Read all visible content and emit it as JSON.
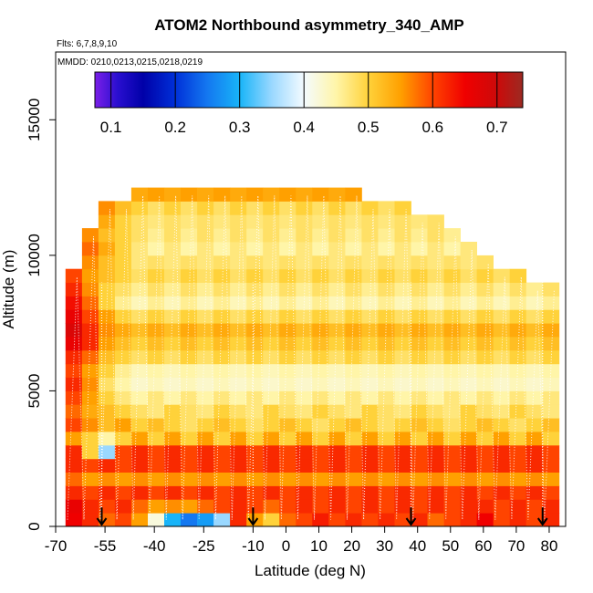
{
  "chart_data": {
    "type": "heatmap",
    "title": "ATOM2 Northbound asymmetry_340_AMP",
    "flights_label": "Flts: 6,7,8,9,10",
    "dates_label": "MMDD: 0210,0213,0215,0218,0219",
    "xlabel": "Latitude (deg N)",
    "ylabel": "Altitude (m)",
    "xlim": [
      -70,
      85
    ],
    "ylim": [
      0,
      17500
    ],
    "x_ticks": [
      -70,
      -55,
      -40,
      -25,
      -10,
      0,
      10,
      20,
      30,
      40,
      50,
      60,
      70,
      80
    ],
    "y_ticks": [
      0,
      5000,
      10000,
      15000
    ],
    "colorbar": {
      "range": [
        0.075,
        0.74
      ],
      "ticks": [
        0.1,
        0.2,
        0.3,
        0.4,
        0.5,
        0.6,
        0.7
      ],
      "stops": [
        {
          "v": 0.075,
          "c": "#7b1fe8"
        },
        {
          "v": 0.11,
          "c": "#2a0fd0"
        },
        {
          "v": 0.15,
          "c": "#0000a8"
        },
        {
          "v": 0.2,
          "c": "#0030d8"
        },
        {
          "v": 0.25,
          "c": "#1478f0"
        },
        {
          "v": 0.3,
          "c": "#18b4f8"
        },
        {
          "v": 0.35,
          "c": "#9ad8ff"
        },
        {
          "v": 0.4,
          "c": "#f4fbff"
        },
        {
          "v": 0.45,
          "c": "#fff5a8"
        },
        {
          "v": 0.5,
          "c": "#ffd23a"
        },
        {
          "v": 0.55,
          "c": "#ffa000"
        },
        {
          "v": 0.6,
          "c": "#ff4400"
        },
        {
          "v": 0.65,
          "c": "#f00000"
        },
        {
          "v": 0.7,
          "c": "#cc0a0a"
        },
        {
          "v": 0.74,
          "c": "#9c2a22"
        }
      ]
    },
    "profile_latitudes": [
      -56,
      -10,
      38,
      78
    ],
    "altitude_bins_m": [
      0,
      500,
      1000,
      1500,
      2000,
      2500,
      3000,
      3500,
      4000,
      4500,
      5000,
      5500,
      6000,
      6500,
      7000,
      7500,
      8000,
      8500,
      9000,
      9500,
      10000,
      10500,
      11000,
      11500,
      12000,
      12500
    ],
    "latitude_bins_deg": [
      -67,
      -62,
      -57,
      -52,
      -47,
      -42,
      -37,
      -32,
      -27,
      -22,
      -17,
      -12,
      -7,
      -2,
      3,
      8,
      13,
      18,
      23,
      28,
      33,
      38,
      43,
      48,
      53,
      58,
      63,
      68,
      73,
      78
    ],
    "column_top_altitude_m": [
      9500,
      11000,
      12000,
      12000,
      12500,
      12500,
      12500,
      12500,
      12500,
      12500,
      12500,
      12500,
      12500,
      12500,
      12500,
      12500,
      12500,
      12500,
      12000,
      12000,
      12000,
      11500,
      11500,
      11000,
      10500,
      10000,
      9500,
      9500,
      9000,
      9000
    ],
    "values_by_altitude": [
      [
        0.65,
        0.62,
        0.58,
        0.6,
        0.55,
        0.42,
        0.3,
        0.25,
        0.28,
        0.35,
        0.62,
        0.55,
        0.5,
        0.58,
        0.6,
        0.63,
        0.6,
        0.62,
        0.6,
        0.62,
        0.6,
        0.62,
        0.58,
        0.6,
        0.62,
        0.65,
        0.6,
        0.62,
        0.6,
        0.62
      ],
      [
        0.66,
        0.62,
        0.6,
        0.62,
        0.58,
        0.55,
        0.56,
        0.55,
        0.58,
        0.6,
        0.62,
        0.6,
        0.58,
        0.6,
        0.62,
        0.6,
        0.62,
        0.6,
        0.62,
        0.6,
        0.62,
        0.6,
        0.62,
        0.6,
        0.62,
        0.62,
        0.6,
        0.62,
        0.6,
        0.62
      ],
      [
        0.62,
        0.6,
        0.62,
        0.6,
        0.62,
        0.6,
        0.62,
        0.6,
        0.62,
        0.6,
        0.62,
        0.6,
        0.62,
        0.6,
        0.62,
        0.6,
        0.62,
        0.6,
        0.62,
        0.6,
        0.62,
        0.6,
        0.62,
        0.6,
        0.62,
        0.6,
        0.62,
        0.6,
        0.62,
        0.6
      ],
      [
        0.58,
        0.55,
        0.56,
        0.55,
        0.56,
        0.55,
        0.56,
        0.55,
        0.56,
        0.55,
        0.56,
        0.55,
        0.56,
        0.55,
        0.56,
        0.55,
        0.56,
        0.55,
        0.56,
        0.55,
        0.56,
        0.55,
        0.56,
        0.55,
        0.56,
        0.55,
        0.56,
        0.55,
        0.56,
        0.55
      ],
      [
        0.62,
        0.6,
        0.62,
        0.6,
        0.62,
        0.6,
        0.62,
        0.6,
        0.62,
        0.6,
        0.62,
        0.6,
        0.62,
        0.6,
        0.62,
        0.6,
        0.62,
        0.6,
        0.62,
        0.6,
        0.62,
        0.6,
        0.62,
        0.6,
        0.62,
        0.6,
        0.62,
        0.6,
        0.62,
        0.6
      ],
      [
        0.62,
        0.5,
        0.35,
        0.6,
        0.62,
        0.6,
        0.62,
        0.6,
        0.62,
        0.6,
        0.62,
        0.6,
        0.62,
        0.6,
        0.62,
        0.6,
        0.62,
        0.6,
        0.62,
        0.6,
        0.62,
        0.6,
        0.62,
        0.6,
        0.62,
        0.6,
        0.62,
        0.6,
        0.62,
        0.6
      ],
      [
        0.55,
        0.5,
        0.45,
        0.5,
        0.55,
        0.5,
        0.55,
        0.5,
        0.55,
        0.5,
        0.55,
        0.5,
        0.55,
        0.5,
        0.55,
        0.5,
        0.55,
        0.5,
        0.55,
        0.5,
        0.55,
        0.5,
        0.55,
        0.5,
        0.55,
        0.5,
        0.55,
        0.5,
        0.55,
        0.5
      ],
      [
        0.6,
        0.56,
        0.52,
        0.55,
        0.5,
        0.52,
        0.5,
        0.48,
        0.5,
        0.52,
        0.5,
        0.48,
        0.5,
        0.52,
        0.5,
        0.48,
        0.5,
        0.52,
        0.5,
        0.48,
        0.5,
        0.52,
        0.5,
        0.48,
        0.5,
        0.52,
        0.5,
        0.48,
        0.5,
        0.52
      ],
      [
        0.58,
        0.54,
        0.52,
        0.5,
        0.48,
        0.47,
        0.5,
        0.48,
        0.47,
        0.5,
        0.48,
        0.47,
        0.5,
        0.48,
        0.47,
        0.5,
        0.48,
        0.47,
        0.5,
        0.48,
        0.47,
        0.5,
        0.48,
        0.47,
        0.5,
        0.48,
        0.47,
        0.5,
        0.48,
        0.47
      ],
      [
        0.6,
        0.55,
        0.5,
        0.47,
        0.45,
        0.47,
        0.45,
        0.47,
        0.45,
        0.47,
        0.45,
        0.47,
        0.45,
        0.47,
        0.45,
        0.47,
        0.45,
        0.47,
        0.45,
        0.47,
        0.45,
        0.47,
        0.45,
        0.47,
        0.45,
        0.47,
        0.45,
        0.47,
        0.45,
        0.47
      ],
      [
        0.62,
        0.56,
        0.48,
        0.45,
        0.43,
        0.44,
        0.43,
        0.44,
        0.43,
        0.44,
        0.43,
        0.44,
        0.43,
        0.44,
        0.43,
        0.44,
        0.43,
        0.44,
        0.43,
        0.44,
        0.43,
        0.44,
        0.43,
        0.44,
        0.43,
        0.44,
        0.43,
        0.44,
        0.43,
        0.44
      ],
      [
        0.6,
        0.55,
        0.5,
        0.46,
        0.44,
        0.45,
        0.44,
        0.45,
        0.44,
        0.45,
        0.44,
        0.45,
        0.44,
        0.45,
        0.44,
        0.45,
        0.44,
        0.45,
        0.44,
        0.45,
        0.44,
        0.45,
        0.44,
        0.45,
        0.44,
        0.45,
        0.44,
        0.45,
        0.44,
        0.45
      ],
      [
        0.62,
        0.58,
        0.52,
        0.5,
        0.48,
        0.5,
        0.48,
        0.5,
        0.48,
        0.5,
        0.48,
        0.5,
        0.48,
        0.5,
        0.48,
        0.5,
        0.48,
        0.5,
        0.48,
        0.5,
        0.48,
        0.5,
        0.48,
        0.5,
        0.48,
        0.5,
        0.48,
        0.5,
        0.48,
        0.5
      ],
      [
        0.66,
        0.62,
        0.55,
        0.52,
        0.5,
        0.52,
        0.5,
        0.52,
        0.5,
        0.52,
        0.5,
        0.52,
        0.5,
        0.52,
        0.5,
        0.52,
        0.5,
        0.52,
        0.5,
        0.52,
        0.5,
        0.52,
        0.5,
        0.52,
        0.5,
        0.52,
        0.5,
        0.52,
        0.5,
        0.52
      ],
      [
        0.68,
        0.62,
        0.56,
        0.54,
        0.52,
        0.54,
        0.52,
        0.54,
        0.52,
        0.54,
        0.52,
        0.54,
        0.52,
        0.54,
        0.52,
        0.54,
        0.52,
        0.54,
        0.52,
        0.54,
        0.52,
        0.54,
        0.52,
        0.54,
        0.52,
        0.54,
        0.52,
        0.54,
        0.52,
        0.54
      ],
      [
        0.66,
        0.6,
        0.55,
        0.5,
        0.48,
        0.5,
        0.48,
        0.5,
        0.48,
        0.5,
        0.48,
        0.5,
        0.48,
        0.5,
        0.48,
        0.5,
        0.48,
        0.5,
        0.48,
        0.5,
        0.48,
        0.5,
        0.48,
        0.5,
        0.48,
        0.5,
        0.48,
        0.5,
        0.48,
        0.5
      ],
      [
        0.64,
        0.58,
        0.5,
        0.46,
        0.44,
        0.46,
        0.44,
        0.46,
        0.44,
        0.46,
        0.44,
        0.46,
        0.44,
        0.46,
        0.44,
        0.46,
        0.44,
        0.46,
        0.44,
        0.46,
        0.44,
        0.46,
        0.44,
        0.46,
        0.44,
        0.46,
        0.44,
        0.46,
        0.44,
        0.46
      ],
      [
        0.62,
        0.56,
        0.5,
        0.48,
        0.46,
        0.48,
        0.46,
        0.48,
        0.46,
        0.48,
        0.46,
        0.48,
        0.46,
        0.48,
        0.46,
        0.48,
        0.46,
        0.48,
        0.46,
        0.48,
        0.46,
        0.48,
        0.46,
        0.48,
        0.46,
        0.48,
        0.46,
        0.48,
        0.46,
        0.48
      ],
      [
        0.6,
        0.55,
        0.52,
        0.5,
        0.48,
        0.5,
        0.48,
        0.5,
        0.48,
        0.5,
        0.48,
        0.5,
        0.48,
        0.5,
        0.48,
        0.5,
        0.48,
        0.5,
        0.48,
        0.5,
        0.48,
        0.5,
        0.48,
        0.5,
        0.48,
        0.5,
        0.48,
        0.5,
        0.48,
        0.5
      ],
      [
        0.6,
        0.56,
        0.52,
        0.5,
        0.47,
        0.48,
        0.47,
        0.48,
        0.47,
        0.48,
        0.47,
        0.48,
        0.47,
        0.48,
        0.47,
        0.48,
        0.47,
        0.48,
        0.47,
        0.48,
        0.47,
        0.48,
        0.47,
        0.48,
        0.47,
        0.48,
        0.47,
        0.48,
        0.47,
        0.48
      ],
      [
        0.62,
        0.58,
        0.54,
        0.5,
        0.47,
        0.45,
        0.47,
        0.45,
        0.47,
        0.45,
        0.47,
        0.45,
        0.47,
        0.45,
        0.47,
        0.45,
        0.47,
        0.45,
        0.47,
        0.45,
        0.47,
        0.45,
        0.47,
        0.45,
        0.47,
        0.45,
        0.47,
        0.45,
        0.47,
        0.45
      ],
      [
        0.6,
        0.56,
        0.52,
        0.5,
        0.48,
        0.46,
        0.48,
        0.46,
        0.48,
        0.46,
        0.48,
        0.46,
        0.48,
        0.46,
        0.48,
        0.46,
        0.48,
        0.46,
        0.48,
        0.46,
        0.48,
        0.46,
        0.48,
        0.46,
        0.48,
        0.46,
        0.48,
        0.46,
        0.48,
        0.46
      ],
      [
        0.62,
        0.58,
        0.54,
        0.5,
        0.48,
        0.47,
        0.48,
        0.47,
        0.48,
        0.47,
        0.48,
        0.47,
        0.48,
        0.47,
        0.48,
        0.47,
        0.48,
        0.47,
        0.48,
        0.47,
        0.48,
        0.47,
        0.48,
        0.47,
        0.48,
        0.47,
        0.48,
        0.47,
        0.48,
        0.47
      ],
      [
        0.62,
        0.6,
        0.56,
        0.52,
        0.5,
        0.48,
        0.5,
        0.48,
        0.5,
        0.48,
        0.5,
        0.48,
        0.5,
        0.48,
        0.5,
        0.48,
        0.5,
        0.48,
        0.5,
        0.48,
        0.5,
        0.48,
        0.5,
        0.48,
        0.5,
        0.48,
        0.5,
        0.48,
        0.5,
        0.48
      ],
      [
        0.64,
        0.62,
        0.58,
        0.56,
        0.54,
        0.55,
        0.54,
        0.55,
        0.54,
        0.55,
        0.54,
        0.55,
        0.54,
        0.55,
        0.54,
        0.55,
        0.54,
        0.55,
        0.54,
        0.55,
        0.54,
        0.55,
        0.54,
        0.55,
        0.54,
        0.55,
        0.54,
        0.55,
        0.54,
        0.55
      ],
      [
        0.64,
        0.62,
        0.6,
        0.58,
        0.56,
        0.57,
        0.56,
        0.57,
        0.56,
        0.57,
        0.56,
        0.57,
        0.56,
        0.57,
        0.56,
        0.57,
        0.56,
        0.57,
        0.56,
        0.57,
        0.56,
        0.57,
        0.56,
        0.57,
        0.56,
        0.57,
        0.56,
        0.57,
        0.56,
        0.57
      ]
    ]
  }
}
